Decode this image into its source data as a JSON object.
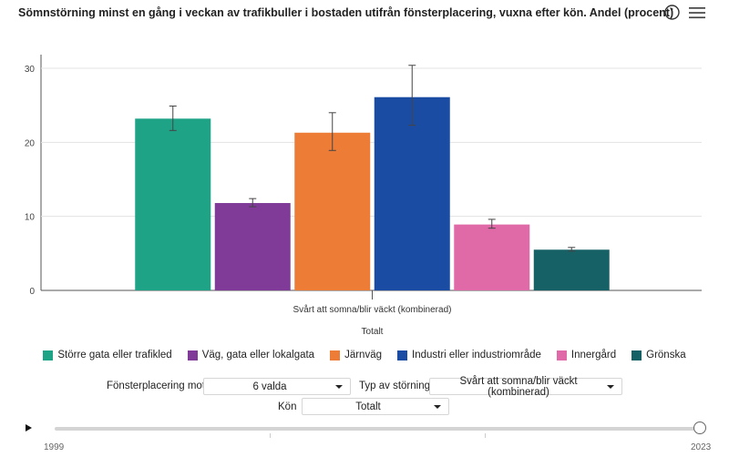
{
  "header": {
    "title": "Sömnstörning minst en gång i veckan av trafikbuller i bostaden utifrån fönsterplacering, vuxna efter kön. Andel (procent)",
    "info_icon": "info-circle-icon",
    "menu_icon": "hamburger-menu-icon"
  },
  "chart_data": {
    "type": "bar",
    "categories": [
      "Svårt att somna/blir väckt (kombinerad)"
    ],
    "xlabel": "Totalt",
    "ylabel": "",
    "ylim": [
      0,
      30
    ],
    "yticks": [
      0,
      10,
      20,
      30
    ],
    "grid": true,
    "legend_position": "bottom",
    "series": [
      {
        "name": "Större gata eller trafikled",
        "color": "#1fa387",
        "values": [
          23.2
        ],
        "error": [
          [
            21.6,
            24.9
          ]
        ]
      },
      {
        "name": "Väg, gata eller lokalgata",
        "color": "#7f3b97",
        "values": [
          11.8
        ],
        "error": [
          [
            11.3,
            12.4
          ]
        ]
      },
      {
        "name": "Järnväg",
        "color": "#ed7d36",
        "values": [
          21.3
        ],
        "error": [
          [
            18.9,
            24.0
          ]
        ]
      },
      {
        "name": "Industri eller industriområde",
        "color": "#1b4ca3",
        "values": [
          26.1
        ],
        "error": [
          [
            22.3,
            30.4
          ]
        ]
      },
      {
        "name": "Innergård",
        "color": "#e06aa8",
        "values": [
          8.9
        ],
        "error": [
          [
            8.4,
            9.6
          ]
        ]
      },
      {
        "name": "Grönska",
        "color": "#166166",
        "values": [
          5.5
        ],
        "error": [
          [
            5.3,
            5.8
          ]
        ]
      }
    ]
  },
  "controls": {
    "fonster_label": "Fönsterplacering mot",
    "fonster_value": "6 valda",
    "typ_label": "Typ av störning",
    "typ_value": "Svårt att somna/blir väckt (kombinerad)",
    "kon_label": "Kön",
    "kon_value": "Totalt"
  },
  "timeline": {
    "start_year": "1999",
    "end_year": "2023",
    "position": 1.0,
    "play_icon": "play-icon"
  }
}
